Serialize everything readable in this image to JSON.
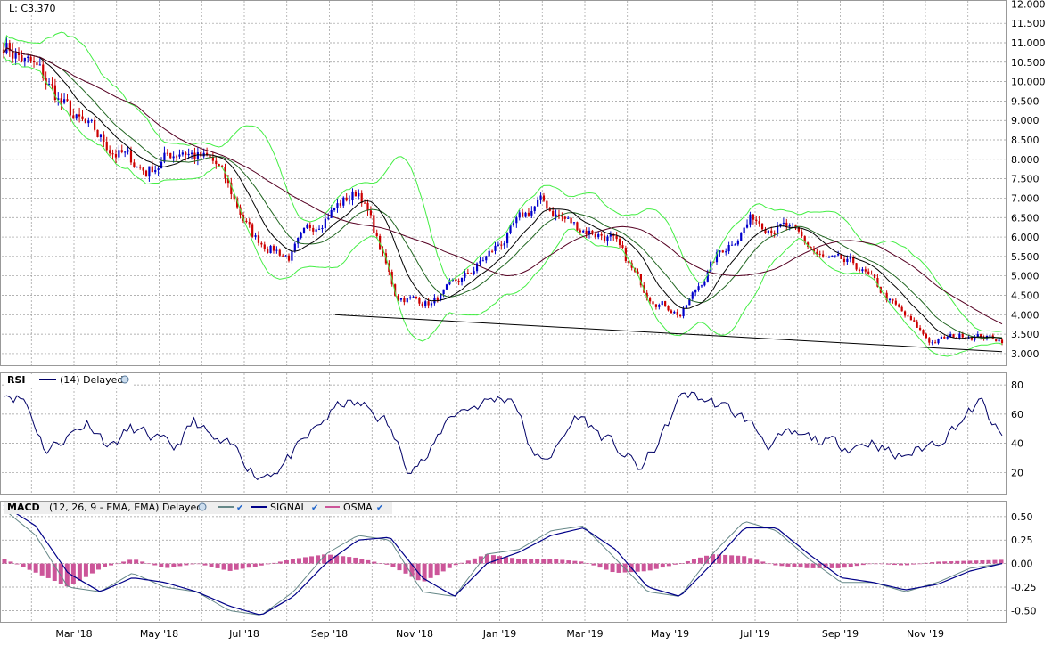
{
  "price_panel": {
    "last_label": "L: C3.370"
  },
  "rsi_panel": {
    "title": "RSI",
    "params": "(14) Delayed"
  },
  "macd_panel": {
    "title": "MACD",
    "params": "(12, 26, 9 - EMA, EMA) Delayed",
    "signal_label": "SIGNAL",
    "osma_label": "OSMA"
  },
  "colors": {
    "up_candle": "#0000cc",
    "down_candle": "#cc0000",
    "bollinger": "#44ee44",
    "sma_short": "#000000",
    "sma_long": "#550022",
    "trendline": "#000000",
    "rsi_line": "#000066",
    "macd_line": "#668888",
    "signal_line": "#000088",
    "osma_bars": "#cc5599",
    "grid": "#999999"
  },
  "chart_data": [
    {
      "type": "candlestick",
      "x_labels": [
        "Mar '18",
        "May '18",
        "Jul '18",
        "Sep '18",
        "Nov '18",
        "Jan '19",
        "Mar '19",
        "May '19",
        "Jul '19",
        "Sep '19",
        "Nov '19"
      ],
      "y_ticks": [
        "3.000",
        "3.500",
        "4.000",
        "4.500",
        "5.000",
        "5.500",
        "6.000",
        "6.500",
        "7.000",
        "7.500",
        "8.000",
        "8.500",
        "9.000",
        "9.500",
        "10.000",
        "10.500",
        "11.000",
        "11.500",
        "12.000"
      ],
      "ylim": [
        2.7,
        12.1
      ],
      "grid": true,
      "approx_close_path": [
        [
          "Feb '18 start",
          11.0
        ],
        [
          "Feb '18 mid",
          10.2
        ],
        [
          "Mar '18",
          9.0
        ],
        [
          "Mar '18 late",
          8.3
        ],
        [
          "Apr '18",
          7.7
        ],
        [
          "Apr '18 mid",
          8.3
        ],
        [
          "May '18",
          7.8
        ],
        [
          "May '18 mid",
          6.0
        ],
        [
          "Jun '18",
          5.5
        ],
        [
          "Jul '18",
          6.6
        ],
        [
          "Aug '18",
          7.2
        ],
        [
          "Sep '18",
          4.5
        ],
        [
          "Oct '18",
          4.3
        ],
        [
          "Nov '18",
          5.0
        ],
        [
          "Dec '18",
          5.9
        ],
        [
          "Jan '19",
          6.9
        ],
        [
          "Feb '19",
          6.3
        ],
        [
          "Mar '19",
          6.0
        ],
        [
          "Apr '19",
          4.6
        ],
        [
          "May '19",
          4.0
        ],
        [
          "Jun '19",
          5.5
        ],
        [
          "Jul '19",
          6.5
        ],
        [
          "Aug '19",
          6.2
        ],
        [
          "Aug '19 late",
          5.4
        ],
        [
          "Sep '19",
          5.2
        ],
        [
          "Oct '19",
          4.2
        ],
        [
          "Nov '19",
          3.3
        ],
        [
          "Dec '19",
          3.5
        ],
        [
          "Dec '19 end",
          3.37
        ]
      ],
      "trendline": {
        "from": [
          "Sep '18",
          4.0
        ],
        "to": [
          "Dec '19 end",
          3.05
        ]
      },
      "overlays": [
        "Bollinger Bands",
        "Moving Average (short)",
        "Moving Average (long)"
      ]
    },
    {
      "type": "line",
      "name": "RSI",
      "y_ticks": [
        "20",
        "40",
        "60",
        "80"
      ],
      "ylim": [
        5,
        88
      ],
      "approx_values": [
        76,
        70,
        35,
        45,
        55,
        38,
        50,
        44,
        36,
        55,
        40,
        35,
        17,
        24,
        38,
        55,
        68,
        65,
        55,
        25,
        30,
        60,
        65,
        70,
        72,
        28,
        35,
        60,
        47,
        35,
        22,
        45,
        75,
        70,
        64,
        56,
        40,
        45,
        43,
        40,
        38,
        42,
        30,
        35,
        42,
        55,
        68,
        42
      ]
    },
    {
      "type": "line",
      "name": "MACD",
      "y_ticks": [
        "-0.50",
        "-0.25",
        "0.00",
        "0.25",
        "0.50"
      ],
      "ylim": [
        -0.62,
        0.66
      ],
      "series": [
        {
          "name": "MACD",
          "approx_values": [
            0.58,
            0.3,
            -0.25,
            -0.3,
            -0.1,
            -0.25,
            -0.3,
            -0.5,
            -0.55,
            -0.3,
            0.1,
            0.3,
            0.25,
            -0.3,
            -0.35,
            0.1,
            0.15,
            0.35,
            0.4,
            0.05,
            -0.3,
            -0.35,
            0.1,
            0.45,
            0.35,
            0.05,
            -0.2,
            -0.2,
            -0.3,
            -0.2,
            -0.05,
            0.0
          ]
        },
        {
          "name": "SIGNAL",
          "approx_values": [
            0.62,
            0.4,
            -0.1,
            -0.3,
            -0.15,
            -0.2,
            -0.3,
            -0.45,
            -0.55,
            -0.35,
            0.0,
            0.25,
            0.28,
            -0.15,
            -0.35,
            0.0,
            0.12,
            0.3,
            0.38,
            0.15,
            -0.25,
            -0.35,
            0.0,
            0.38,
            0.38,
            0.1,
            -0.15,
            -0.2,
            -0.28,
            -0.22,
            -0.08,
            0.0
          ]
        },
        {
          "name": "OSMA",
          "approx_values": [
            0.05,
            -0.1,
            -0.25,
            -0.05,
            0.05,
            -0.05,
            0.0,
            -0.08,
            -0.02,
            0.05,
            0.1,
            0.06,
            -0.02,
            -0.2,
            -0.02,
            0.1,
            0.05,
            0.05,
            0.02,
            -0.1,
            -0.08,
            0.0,
            0.1,
            0.08,
            -0.02,
            -0.05,
            -0.05,
            0.0,
            -0.02,
            0.02,
            0.03,
            0.04
          ]
        }
      ]
    }
  ]
}
